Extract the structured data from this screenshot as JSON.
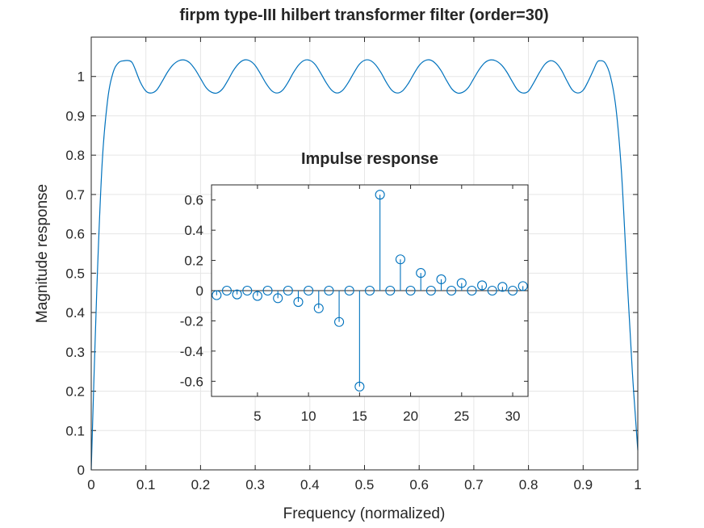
{
  "colors": {
    "series": "#0072bd",
    "axes": "#262626",
    "grid": "#e6e6e6"
  },
  "chart_data": [
    {
      "type": "line",
      "title": "firpm type-III hilbert transformer filter (order=30)",
      "xlabel": "Frequency (normalized)",
      "ylabel": "Magnitude response",
      "xlim": [
        0,
        1
      ],
      "ylim": [
        0,
        1.1
      ],
      "grid": true,
      "xticks": [
        "0",
        "0.1",
        "0.2",
        "0.3",
        "0.4",
        "0.5",
        "0.6",
        "0.7",
        "0.8",
        "0.9",
        "1"
      ],
      "yticks": [
        "0",
        "0.1",
        "0.2",
        "0.3",
        "0.4",
        "0.5",
        "0.6",
        "0.7",
        "0.8",
        "0.9",
        "1"
      ],
      "series": [
        {
          "x": [
            0,
            0.01,
            0.02,
            0.03,
            0.04,
            0.05,
            0.06,
            0.07,
            0.075,
            0.08,
            0.09,
            0.1,
            0.11,
            0.12,
            0.13,
            0.14,
            0.15,
            0.16,
            0.17,
            0.18,
            0.19,
            0.2,
            0.21,
            0.22,
            0.23,
            0.24,
            0.25,
            0.26,
            0.27,
            0.28,
            0.29,
            0.3,
            0.31,
            0.32,
            0.33,
            0.34,
            0.35,
            0.36,
            0.37,
            0.38,
            0.39,
            0.4,
            0.41,
            0.42,
            0.43,
            0.44,
            0.45,
            0.46,
            0.47,
            0.48,
            0.49,
            0.5,
            0.51,
            0.52,
            0.53,
            0.54,
            0.55,
            0.56,
            0.57,
            0.58,
            0.59,
            0.6,
            0.61,
            0.62,
            0.63,
            0.64,
            0.65,
            0.66,
            0.67,
            0.68,
            0.69,
            0.7,
            0.71,
            0.72,
            0.73,
            0.74,
            0.75,
            0.76,
            0.77,
            0.78,
            0.79,
            0.8,
            0.81,
            0.82,
            0.83,
            0.84,
            0.85,
            0.86,
            0.87,
            0.88,
            0.89,
            0.9,
            0.91,
            0.92,
            0.925,
            0.93,
            0.94,
            0.95,
            0.96,
            0.97,
            0.98,
            0.99,
            1
          ],
          "y": [
            0,
            0.45,
            0.78,
            0.94,
            1.01,
            1.035,
            1.04,
            1.04,
            1.035,
            1.02,
            0.985,
            0.963,
            0.958,
            0.966,
            0.988,
            1.012,
            1.03,
            1.04,
            1.042,
            1.035,
            1.018,
            0.995,
            0.972,
            0.96,
            0.958,
            0.968,
            0.99,
            1.015,
            1.033,
            1.042,
            1.04,
            1.028,
            1.006,
            0.982,
            0.964,
            0.958,
            0.965,
            0.985,
            1.01,
            1.03,
            1.041,
            1.041,
            1.03,
            1.008,
            0.984,
            0.965,
            0.958,
            0.965,
            0.984,
            1.008,
            1.03,
            1.041,
            1.041,
            1.03,
            1.01,
            0.985,
            0.965,
            0.958,
            0.964,
            0.982,
            1.006,
            1.028,
            1.04,
            1.042,
            1.033,
            1.015,
            0.99,
            0.968,
            0.958,
            0.96,
            0.972,
            0.995,
            1.018,
            1.035,
            1.042,
            1.04,
            1.03,
            1.012,
            0.988,
            0.966,
            0.958,
            0.963,
            0.985,
            1.01,
            1.031,
            1.04,
            1.035,
            1.017,
            0.99,
            0.966,
            0.958,
            0.965,
            0.99,
            1.02,
            1.035,
            1.04,
            1.035,
            1.0,
            0.92,
            0.76,
            0.5,
            0.25,
            0.05
          ]
        }
      ]
    },
    {
      "type": "stem",
      "title": "Impulse response",
      "xlim": [
        0.5,
        31.5
      ],
      "ylim": [
        -0.7,
        0.7
      ],
      "grid": false,
      "xticks": [
        "5",
        "10",
        "15",
        "20",
        "25",
        "30"
      ],
      "yticks": [
        "-0.6",
        "-0.4",
        "-0.2",
        "0",
        "0.2",
        "0.4",
        "0.6"
      ],
      "x": [
        1,
        2,
        3,
        4,
        5,
        6,
        7,
        8,
        9,
        10,
        11,
        12,
        13,
        14,
        15,
        16,
        17,
        18,
        19,
        20,
        21,
        22,
        23,
        24,
        25,
        26,
        27,
        28,
        29,
        30,
        31
      ],
      "values": [
        -0.03,
        0,
        -0.025,
        0,
        -0.035,
        0,
        -0.05,
        0,
        -0.075,
        0,
        -0.117,
        0,
        -0.207,
        0,
        -0.635,
        0,
        0.635,
        0,
        0.207,
        0,
        0.117,
        0,
        0.075,
        0,
        0.05,
        0,
        0.035,
        0,
        0.025,
        0,
        0.03
      ]
    }
  ]
}
